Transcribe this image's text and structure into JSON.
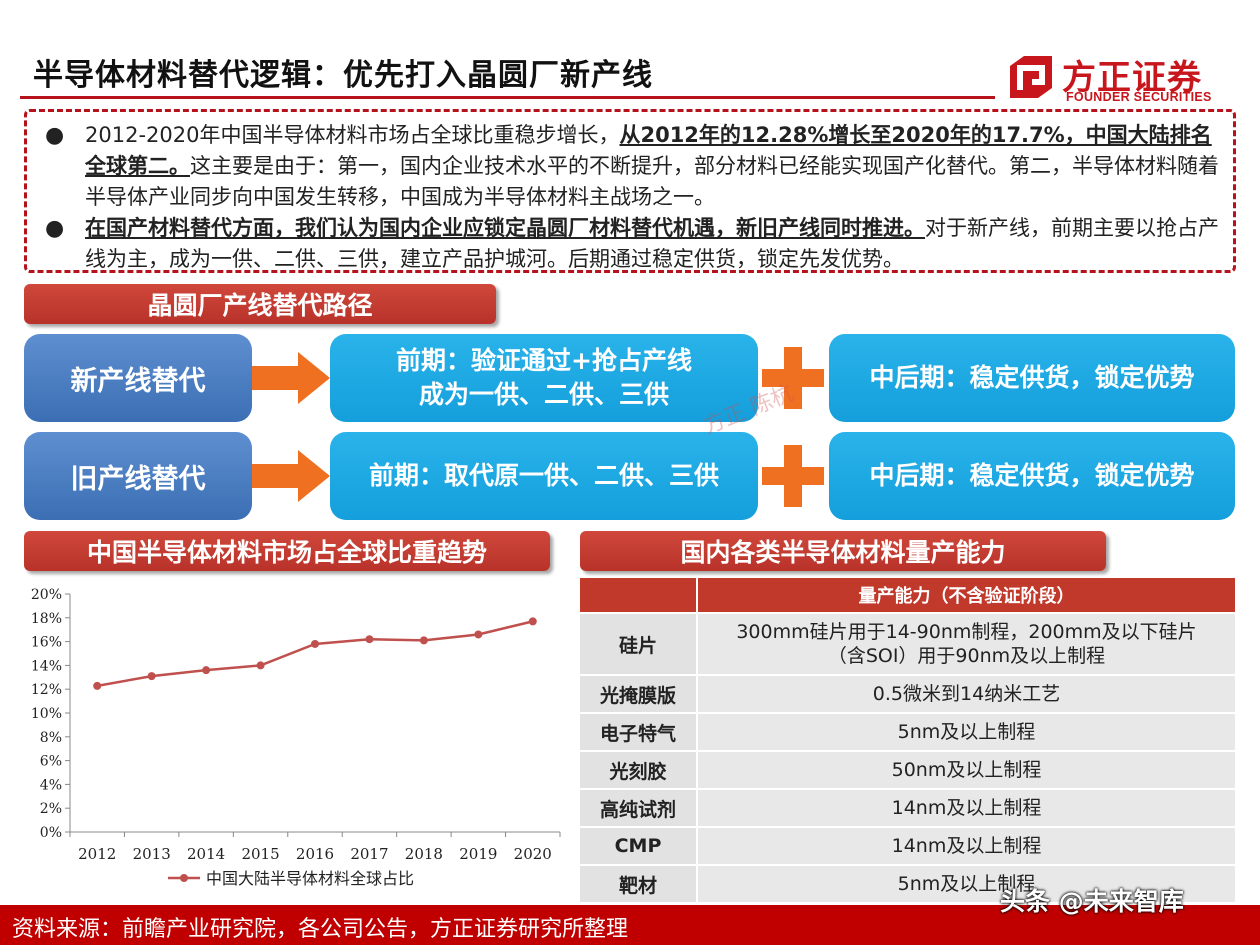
{
  "header": {
    "title": "半导体材料替代逻辑：优先打入晶圆厂新产线",
    "logo_cn": "方正证券",
    "logo_en": "FOUNDER SECURITIES"
  },
  "intro": {
    "bullet1_a": "2012-2020年中国半导体材料市场占全球比重稳步增长，",
    "bullet1_b": "从2012年的12.28%增长至2020年的17.7%，中国大陆排名全球第二。",
    "bullet1_c": "这主要是由于：第一，国内企业技术水平的不断提升，部分材料已经能实现国产化替代。第二，半导体材料随着半导体产业同步向中国发生转移，中国成为半导体材料主战场之一。",
    "bullet2_a": "在国产材料替代方面，我们认为国内企业应锁定晶圆厂材料替代机遇，新旧产线同时推进。",
    "bullet2_b": "对于新产线，前期主要以抢占产线为主，成为一供、二供、三供，建立产品护城河。后期通过稳定供货，锁定先发优势。"
  },
  "path": {
    "header": "晶圆厂产线替代路径",
    "row1_label": "新产线替代",
    "row1_early_line1": "前期：验证通过+抢占产线",
    "row1_early_line2": "成为一供、二供、三供",
    "row1_late": "中后期：稳定供货，锁定优势",
    "row2_label": "旧产线替代",
    "row2_early": "前期：取代原一供、二供、三供",
    "row2_late": "中后期：稳定供货，锁定优势",
    "watermark": "方正 陈杭"
  },
  "chart_section": {
    "header": "中国半导体材料市场占全球比重趋势"
  },
  "chart_data": {
    "type": "line",
    "x": [
      "2012",
      "2013",
      "2014",
      "2015",
      "2016",
      "2017",
      "2018",
      "2019",
      "2020"
    ],
    "series": [
      {
        "name": "中国大陆半导体材料全球占比",
        "values": [
          12.28,
          13.1,
          13.6,
          14.0,
          15.8,
          16.2,
          16.1,
          16.6,
          17.7
        ]
      }
    ],
    "ylim": [
      0,
      20
    ],
    "yticks": [
      "0%",
      "2%",
      "4%",
      "6%",
      "8%",
      "10%",
      "12%",
      "14%",
      "16%",
      "18%",
      "20%"
    ],
    "legend": "bottom",
    "grid": false,
    "color": "#c0504d"
  },
  "table": {
    "header": "国内各类半导体材料量产能力",
    "col_header": "量产能力（不含验证阶段）",
    "rows": [
      {
        "name": "硅片",
        "line1": "300mm硅片用于14-90nm制程，200mm及以下硅片",
        "line2": "（含SOI）用于90nm及以上制程"
      },
      {
        "name": "光掩膜版",
        "line1": "0.5微米到14纳米工艺"
      },
      {
        "name": "电子特气",
        "line1": "5nm及以上制程"
      },
      {
        "name": "光刻胶",
        "line1": "50nm及以上制程"
      },
      {
        "name": "高纯试剂",
        "line1": "14nm及以上制程"
      },
      {
        "name": "CMP",
        "line1": "14nm及以上制程"
      },
      {
        "name": "靶材",
        "line1": "5nm及以上制程"
      }
    ]
  },
  "footer": {
    "source": "资料来源：前瞻产业研究院，各公司公告，方正证券研究所整理",
    "tag": "头条 @未来智库"
  },
  "colors": {
    "brand_red": "#b5121b",
    "section_red": "#c0392b",
    "pill_dark": "#3c6eb4",
    "pill_cyan": "#149fdc",
    "arrow_orange": "#f07022"
  }
}
